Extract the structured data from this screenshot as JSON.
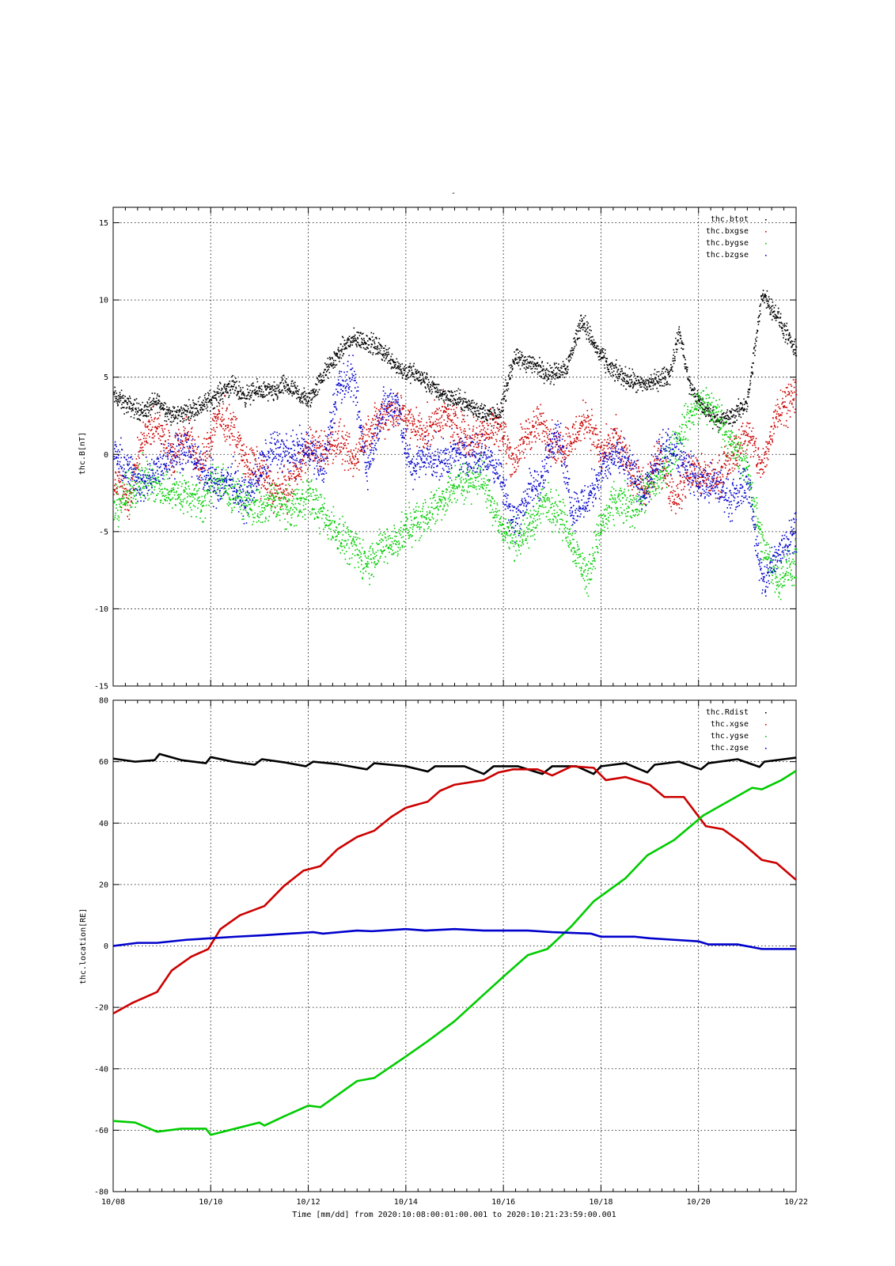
{
  "title": "-",
  "x_axis": {
    "label": "Time [mm/dd]  from 2020:10:08:00:01:00.001  to  2020:10:21:23:59:00.001",
    "tick_labels": [
      "10/08",
      "10/10",
      "10/12",
      "10/14",
      "10/16",
      "10/18",
      "10/20",
      "10/22"
    ]
  },
  "colors": {
    "black": "#000000",
    "red": "#cc0000",
    "green": "#00cc00",
    "blue": "#0000cc",
    "grid": "#000000"
  },
  "chart_data": [
    {
      "type": "scatter",
      "ylabel": "thc.B[nT]",
      "ylim": [
        -15,
        16
      ],
      "xlim": [
        8,
        22
      ],
      "x_unit": "day of October 2020",
      "yticks": [
        15,
        10,
        5,
        0,
        -5,
        -10,
        -15
      ],
      "xticks": [
        8,
        10,
        12,
        14,
        16,
        18,
        20,
        22
      ],
      "grid": true,
      "legend_position": "top-right",
      "series": [
        {
          "name": "thc.btot",
          "color": "#000000",
          "x": [
            8.0,
            8.3,
            8.6,
            8.9,
            9.2,
            9.5,
            9.8,
            10.1,
            10.4,
            10.7,
            11.0,
            11.3,
            11.5,
            12.0,
            12.3,
            12.6,
            12.8,
            13.0,
            13.3,
            13.6,
            13.9,
            14.2,
            14.5,
            14.8,
            15.1,
            15.4,
            15.7,
            15.9,
            16.2,
            16.5,
            16.8,
            17.0,
            17.3,
            17.6,
            17.9,
            18.2,
            18.5,
            18.8,
            19.1,
            19.4,
            19.6,
            19.8,
            20.1,
            20.4,
            20.7,
            21.0,
            21.3,
            21.6,
            22.0
          ],
          "values": [
            3.8,
            3.2,
            2.8,
            3.5,
            2.5,
            2.8,
            3.2,
            3.8,
            4.5,
            3.8,
            4.2,
            4.0,
            4.5,
            3.5,
            5.2,
            6.5,
            7.3,
            7.5,
            7.2,
            6.5,
            5.5,
            5.2,
            4.5,
            3.8,
            3.5,
            3.0,
            2.6,
            2.5,
            6.2,
            6.0,
            5.5,
            5.2,
            5.8,
            8.8,
            6.8,
            5.5,
            5.0,
            4.5,
            4.8,
            5.2,
            8.0,
            4.5,
            3.0,
            2.2,
            2.5,
            3.5,
            10.5,
            9.0,
            6.5
          ]
        },
        {
          "name": "thc.bxgse",
          "color": "#cc0000",
          "x": [
            8.0,
            8.3,
            8.6,
            8.9,
            9.2,
            9.5,
            9.8,
            10.1,
            10.4,
            10.7,
            11.0,
            11.3,
            11.6,
            12.0,
            12.3,
            12.6,
            12.9,
            13.2,
            13.5,
            13.8,
            14.1,
            14.4,
            14.7,
            15.0,
            15.3,
            15.6,
            15.9,
            16.2,
            16.5,
            16.8,
            17.1,
            17.4,
            17.7,
            18.0,
            18.3,
            18.6,
            18.9,
            19.2,
            19.5,
            19.8,
            20.1,
            20.4,
            20.7,
            21.0,
            21.3,
            21.6,
            22.0
          ],
          "values": [
            -1.5,
            -3.0,
            1.0,
            2.0,
            0.0,
            1.5,
            -1.0,
            2.5,
            2.0,
            -0.5,
            -1.0,
            -2.5,
            -2.0,
            0.5,
            0.2,
            1.0,
            -0.5,
            1.5,
            2.5,
            3.0,
            2.0,
            1.5,
            2.5,
            2.0,
            1.0,
            1.5,
            2.0,
            -0.5,
            1.5,
            2.0,
            0.5,
            1.0,
            2.5,
            0.0,
            1.0,
            -1.0,
            -2.5,
            0.0,
            -3.0,
            -1.0,
            -1.5,
            -1.5,
            0.0,
            1.5,
            -1.0,
            3.0,
            4.0
          ]
        },
        {
          "name": "thc.bygse",
          "color": "#00cc00",
          "x": [
            8.0,
            8.3,
            8.6,
            8.9,
            9.2,
            9.5,
            9.8,
            10.1,
            10.4,
            10.7,
            11.0,
            11.3,
            11.6,
            12.0,
            12.3,
            12.6,
            12.9,
            13.2,
            13.5,
            13.8,
            14.1,
            14.4,
            14.7,
            15.0,
            15.3,
            15.6,
            15.9,
            16.2,
            16.5,
            16.8,
            17.1,
            17.4,
            17.7,
            18.0,
            18.3,
            18.6,
            18.9,
            19.2,
            19.5,
            19.8,
            20.1,
            20.4,
            20.7,
            21.0,
            21.3,
            21.6,
            22.0
          ],
          "values": [
            -3.5,
            -2.5,
            -1.5,
            -2.0,
            -2.5,
            -2.5,
            -3.0,
            -1.5,
            -2.5,
            -3.0,
            -3.5,
            -3.0,
            -3.5,
            -2.5,
            -4.0,
            -5.0,
            -6.0,
            -7.0,
            -6.0,
            -5.5,
            -4.5,
            -4.0,
            -3.0,
            -2.0,
            -1.5,
            -1.5,
            -4.5,
            -5.5,
            -5.0,
            -3.0,
            -3.5,
            -5.5,
            -8.0,
            -4.5,
            -3.0,
            -3.5,
            -2.5,
            -1.5,
            0.5,
            2.5,
            3.5,
            2.5,
            0.5,
            -1.0,
            -6.0,
            -8.0,
            -7.0
          ]
        },
        {
          "name": "thc.bzgse",
          "color": "#0000cc",
          "x": [
            8.0,
            8.3,
            8.6,
            8.9,
            9.2,
            9.5,
            9.8,
            10.1,
            10.4,
            10.7,
            11.0,
            11.3,
            11.6,
            12.0,
            12.3,
            12.6,
            12.9,
            13.2,
            13.5,
            13.8,
            14.1,
            14.4,
            14.7,
            15.0,
            15.3,
            15.6,
            15.9,
            16.2,
            16.5,
            16.8,
            17.1,
            17.4,
            17.7,
            18.0,
            18.3,
            18.6,
            18.9,
            19.2,
            19.5,
            19.8,
            20.1,
            20.4,
            20.7,
            21.0,
            21.3,
            21.6,
            22.0
          ],
          "values": [
            0.0,
            -1.0,
            -2.0,
            -1.0,
            0.0,
            0.5,
            -1.0,
            -2.0,
            -1.5,
            -3.0,
            -1.0,
            0.5,
            0.0,
            0.5,
            -1.0,
            4.5,
            5.0,
            -1.0,
            3.0,
            3.5,
            -1.0,
            0.0,
            -0.5,
            0.0,
            0.0,
            0.0,
            -1.0,
            -4.5,
            -2.5,
            -1.5,
            2.0,
            -3.5,
            -3.0,
            -1.0,
            0.0,
            -1.0,
            -2.5,
            0.0,
            0.5,
            -1.0,
            -2.0,
            -2.0,
            -3.0,
            -1.5,
            -8.5,
            -6.5,
            -4.5
          ]
        }
      ]
    },
    {
      "type": "line",
      "ylabel": "thc.location[RE]",
      "ylim": [
        -80,
        80
      ],
      "xlim": [
        8,
        22
      ],
      "x_unit": "day of October 2020",
      "yticks": [
        80,
        60,
        40,
        20,
        0,
        -20,
        -40,
        -60,
        -80
      ],
      "xticks": [
        8,
        10,
        12,
        14,
        16,
        18,
        20,
        22
      ],
      "grid": true,
      "legend_position": "top-right",
      "series": [
        {
          "name": "thc.Rdist",
          "color": "#000000",
          "x": [
            8.0,
            8.45,
            8.85,
            8.95,
            9.4,
            9.9,
            10.0,
            10.45,
            10.9,
            11.05,
            11.5,
            11.95,
            12.1,
            12.6,
            13.2,
            13.35,
            14.0,
            14.45,
            14.6,
            15.2,
            15.6,
            15.8,
            16.3,
            16.8,
            17.0,
            17.5,
            17.85,
            18.0,
            18.5,
            18.95,
            19.1,
            19.6,
            20.05,
            20.2,
            20.8,
            21.25,
            21.35,
            22.0
          ],
          "values": [
            61.0,
            60.0,
            60.5,
            62.5,
            60.5,
            59.5,
            61.5,
            60.0,
            59.0,
            60.8,
            59.8,
            58.5,
            60.0,
            59.2,
            57.5,
            59.5,
            58.5,
            56.8,
            58.5,
            58.5,
            56.0,
            58.5,
            58.5,
            56.0,
            58.5,
            58.5,
            56.0,
            58.5,
            59.5,
            56.5,
            59.0,
            60.0,
            57.5,
            59.5,
            60.8,
            58.3,
            60.0,
            61.3
          ]
        },
        {
          "name": "thc.xgse",
          "color": "#cc0000",
          "x": [
            8.0,
            8.4,
            8.9,
            9.2,
            9.6,
            9.95,
            10.2,
            10.6,
            11.1,
            11.5,
            11.9,
            12.25,
            12.6,
            13.0,
            13.35,
            13.7,
            14.0,
            14.45,
            14.7,
            15.0,
            15.6,
            15.9,
            16.2,
            16.7,
            17.0,
            17.4,
            17.85,
            18.1,
            18.5,
            19.0,
            19.3,
            19.7,
            20.15,
            20.5,
            20.9,
            21.3,
            21.6,
            22.0
          ],
          "values": [
            -22.0,
            -18.5,
            -15.0,
            -8.0,
            -3.5,
            -1.0,
            5.5,
            10.0,
            13.0,
            19.5,
            24.5,
            26.0,
            31.5,
            35.5,
            37.5,
            42.0,
            45.0,
            47.0,
            50.5,
            52.5,
            54.0,
            56.5,
            57.5,
            57.5,
            55.5,
            58.5,
            58.0,
            54.0,
            55.0,
            52.5,
            48.5,
            48.5,
            39.0,
            38.0,
            33.5,
            28.0,
            27.0,
            21.5
          ]
        },
        {
          "name": "thc.ygse",
          "color": "#00cc00",
          "x": [
            8.0,
            8.45,
            8.9,
            9.4,
            9.9,
            10.0,
            10.5,
            11.0,
            11.1,
            11.5,
            12.0,
            12.25,
            13.0,
            13.35,
            14.0,
            14.45,
            15.0,
            15.55,
            16.0,
            16.5,
            16.9,
            17.4,
            17.85,
            18.5,
            18.95,
            19.5,
            20.1,
            20.6,
            21.1,
            21.3,
            21.7,
            22.0
          ],
          "values": [
            -57.0,
            -57.5,
            -60.5,
            -59.5,
            -59.5,
            -61.5,
            -59.5,
            -57.5,
            -58.5,
            -55.5,
            -52.0,
            -52.5,
            -44.0,
            -43.0,
            -36.0,
            -31.0,
            -24.5,
            -16.5,
            -10.0,
            -3.0,
            -1.0,
            6.5,
            14.5,
            22.0,
            29.5,
            34.5,
            42.5,
            47.0,
            51.5,
            51.0,
            54.0,
            57.0
          ]
        },
        {
          "name": "thc.zgse",
          "color": "#0000cc",
          "x": [
            8.0,
            8.5,
            8.9,
            9.5,
            10.0,
            10.5,
            11.1,
            11.6,
            12.1,
            12.3,
            13.0,
            13.3,
            14.0,
            14.4,
            15.0,
            15.6,
            16.0,
            16.5,
            17.0,
            17.8,
            18.0,
            18.7,
            19.0,
            19.5,
            20.0,
            20.2,
            20.8,
            21.3,
            22.0
          ],
          "values": [
            0.0,
            1.0,
            1.0,
            2.0,
            2.5,
            3.0,
            3.5,
            4.0,
            4.5,
            4.0,
            5.0,
            4.8,
            5.5,
            5.0,
            5.5,
            5.0,
            5.0,
            5.0,
            4.5,
            4.0,
            3.0,
            3.0,
            2.5,
            2.0,
            1.5,
            0.5,
            0.5,
            -1.0,
            -1.0
          ]
        }
      ]
    }
  ]
}
